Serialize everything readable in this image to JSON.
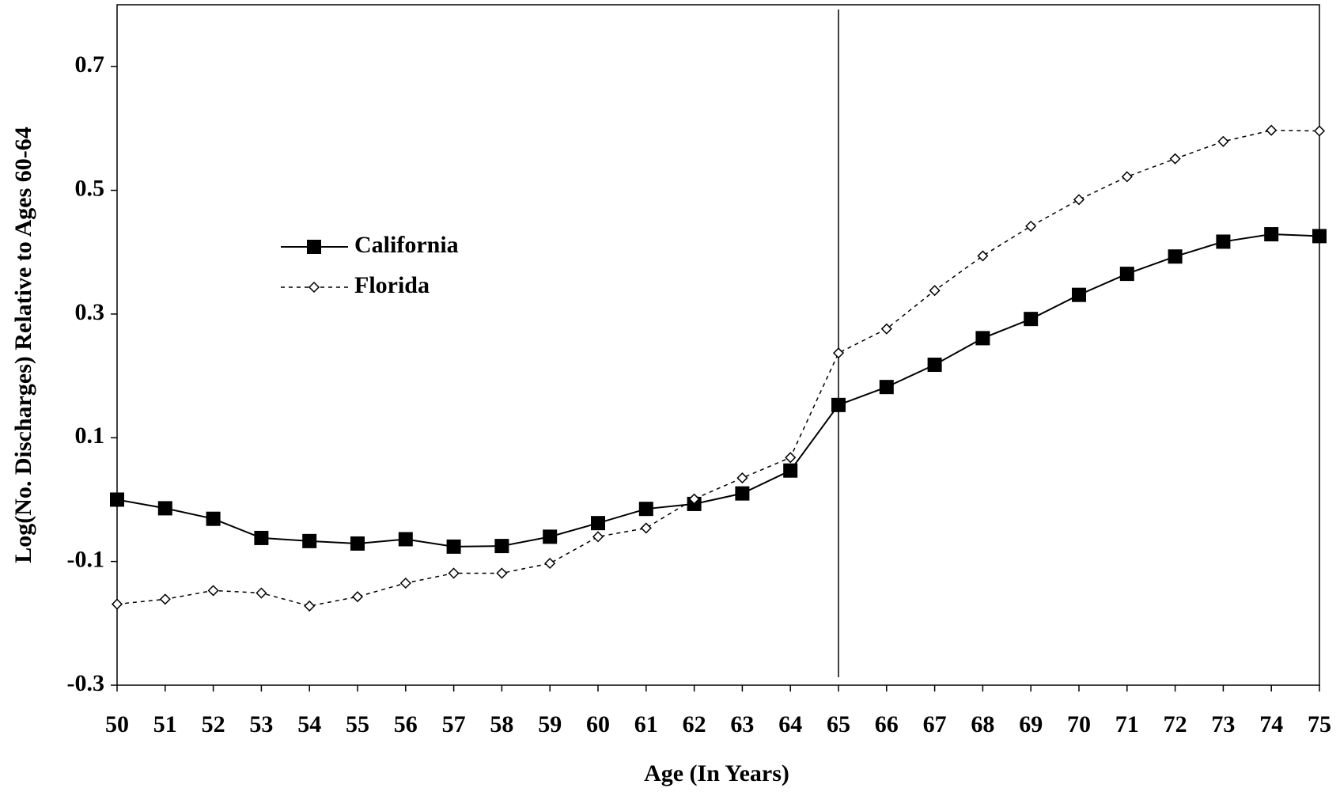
{
  "chart_data": {
    "type": "line",
    "x_label": "Age (In Years)",
    "y_label": "Log(No. Discharges) Relative to Ages 60-64",
    "x": [
      50,
      51,
      52,
      53,
      54,
      55,
      56,
      57,
      58,
      59,
      60,
      61,
      62,
      63,
      64,
      65,
      66,
      67,
      68,
      69,
      70,
      71,
      72,
      73,
      74,
      75
    ],
    "series": [
      {
        "name": "California",
        "color": "#000000",
        "dash": false,
        "marker": "square",
        "values": [
          0.0,
          -0.014,
          -0.031,
          -0.062,
          -0.067,
          -0.071,
          -0.064,
          -0.076,
          -0.075,
          -0.06,
          -0.038,
          -0.015,
          -0.007,
          0.01,
          0.047,
          0.153,
          0.182,
          0.218,
          0.261,
          0.292,
          0.331,
          0.365,
          0.393,
          0.417,
          0.429,
          0.426
        ]
      },
      {
        "name": "Florida",
        "color": "#000000",
        "dash": true,
        "marker": "diamond",
        "values": [
          -0.169,
          -0.161,
          -0.147,
          -0.151,
          -0.172,
          -0.157,
          -0.135,
          -0.119,
          -0.119,
          -0.103,
          -0.06,
          -0.046,
          0.001,
          0.035,
          0.068,
          0.237,
          0.276,
          0.338,
          0.394,
          0.442,
          0.485,
          0.522,
          0.551,
          0.579,
          0.597,
          0.596
        ]
      }
    ],
    "xlim": [
      50,
      75
    ],
    "xticks": [
      50,
      51,
      52,
      53,
      54,
      55,
      56,
      57,
      58,
      59,
      60,
      61,
      62,
      63,
      64,
      65,
      66,
      67,
      68,
      69,
      70,
      71,
      72,
      73,
      74,
      75
    ],
    "ylim": [
      -0.3,
      0.8
    ],
    "yticks": [
      -0.3,
      -0.1,
      0.1,
      0.3,
      0.5,
      0.7
    ],
    "vline": 65,
    "grid": false,
    "legend": "upper-left"
  }
}
